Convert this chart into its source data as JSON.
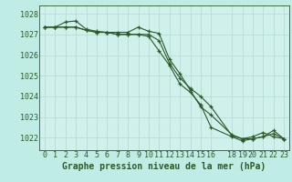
{
  "title": "Graphe pression niveau de la mer (hPa)",
  "background_color": "#c0ece6",
  "plot_bg_color": "#d0f0ec",
  "grid_color": "#b0d8d0",
  "line_color": "#2d5a27",
  "xlim": [
    -0.5,
    23.5
  ],
  "ylim": [
    1021.4,
    1028.4
  ],
  "yticks": [
    1022,
    1023,
    1024,
    1025,
    1026,
    1027,
    1028
  ],
  "ytick_labels": [
    "1022",
    "1023",
    "1024",
    "1025",
    "1026",
    "1027",
    "1028"
  ],
  "xticks": [
    0,
    1,
    2,
    3,
    4,
    5,
    6,
    7,
    8,
    9,
    10,
    11,
    12,
    13,
    14,
    15,
    16,
    18,
    19,
    20,
    21,
    22,
    23
  ],
  "xtick_labels": [
    "0",
    "1",
    "2",
    "3",
    "4",
    "5",
    "6",
    "7",
    "8",
    "9",
    "10",
    "11",
    "12",
    "13",
    "14",
    "15",
    "16",
    "18",
    "19",
    "20",
    "21",
    "22",
    "23"
  ],
  "series1_x": [
    0,
    1,
    2,
    3,
    4,
    5,
    6,
    7,
    8,
    9,
    10,
    11,
    12,
    13,
    14,
    15,
    16,
    18,
    19,
    20,
    21,
    22,
    23
  ],
  "series1_y": [
    1027.35,
    1027.35,
    1027.6,
    1027.65,
    1027.25,
    1027.15,
    1027.1,
    1027.1,
    1027.1,
    1027.35,
    1027.15,
    1027.05,
    1025.8,
    1025.1,
    1024.3,
    1023.5,
    1023.1,
    1022.15,
    1021.95,
    1022.05,
    1022.25,
    1022.05,
    1021.95
  ],
  "series2_x": [
    0,
    1,
    2,
    3,
    4,
    5,
    6,
    7,
    8,
    9,
    10,
    11,
    12,
    13,
    14,
    15,
    16,
    18,
    19,
    20,
    21,
    22,
    23
  ],
  "series2_y": [
    1027.35,
    1027.35,
    1027.35,
    1027.35,
    1027.2,
    1027.1,
    1027.1,
    1027.0,
    1027.0,
    1027.0,
    1026.9,
    1026.2,
    1025.5,
    1024.6,
    1024.2,
    1023.6,
    1022.5,
    1022.05,
    1021.85,
    1021.95,
    1022.05,
    1022.2,
    1021.95
  ],
  "series3_x": [
    0,
    1,
    2,
    3,
    4,
    5,
    6,
    7,
    8,
    9,
    10,
    11,
    12,
    13,
    14,
    15,
    16,
    18,
    19,
    20,
    21,
    22,
    23
  ],
  "series3_y": [
    1027.35,
    1027.35,
    1027.35,
    1027.35,
    1027.2,
    1027.1,
    1027.1,
    1027.0,
    1027.0,
    1027.0,
    1027.0,
    1026.7,
    1025.6,
    1024.9,
    1024.4,
    1024.0,
    1023.5,
    1022.1,
    1021.95,
    1021.95,
    1022.05,
    1022.35,
    1021.95
  ],
  "tick_fontsize": 6.0,
  "label_fontsize": 7.0
}
